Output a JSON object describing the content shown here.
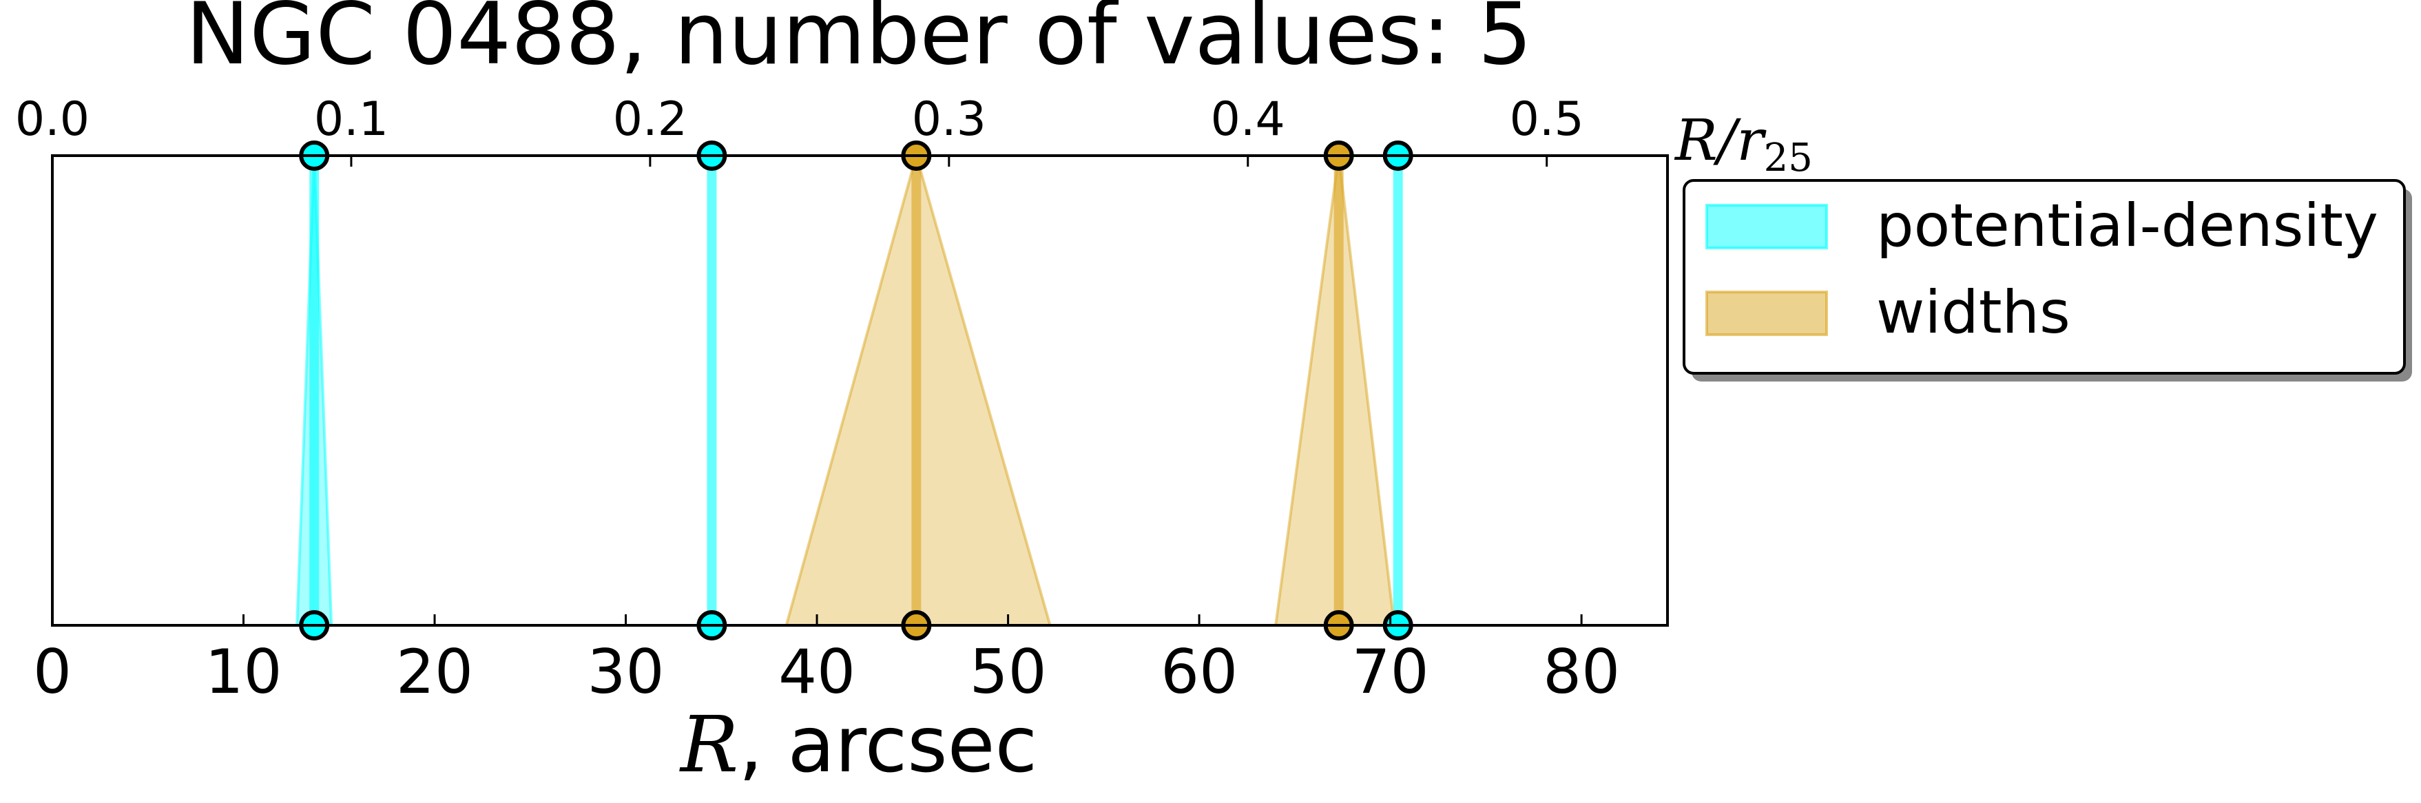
{
  "chart_data": {
    "type": "area",
    "title": "NGC 0488, number of values: 5",
    "xlabel_var": "R",
    "xlabel_rest": ", arcsec",
    "top_axis_label_main": "R/r",
    "top_axis_label_sub": "25",
    "xlim": [
      0,
      84.5
    ],
    "ylim": [
      0,
      1
    ],
    "top_xlim": [
      0,
      0.5404
    ],
    "x_ticks": [
      "0",
      "10",
      "20",
      "30",
      "40",
      "50",
      "60",
      "70",
      "80"
    ],
    "x_tick_values": [
      0,
      10,
      20,
      30,
      40,
      50,
      60,
      70,
      80
    ],
    "top_ticks": [
      "0.0",
      "0.1",
      "0.2",
      "0.3",
      "0.4",
      "0.5"
    ],
    "top_tick_values": [
      0.0,
      0.1,
      0.2,
      0.3,
      0.4,
      0.5
    ],
    "grid": false,
    "legend_position": "outside-right",
    "series": [
      {
        "name": "potential-density",
        "color": "#00FFFF",
        "markers": [
          13.7,
          34.5,
          70.4
        ],
        "triangles": [
          {
            "center": 13.7,
            "left": 12.8,
            "right": 14.6
          }
        ]
      },
      {
        "name": "widths",
        "color": "#DAA520",
        "markers": [
          45.2,
          67.3
        ],
        "triangles": [
          {
            "center": 45.2,
            "left": 38.4,
            "right": 52.2
          },
          {
            "center": 67.3,
            "left": 64.0,
            "right": 70.2
          }
        ]
      }
    ]
  }
}
